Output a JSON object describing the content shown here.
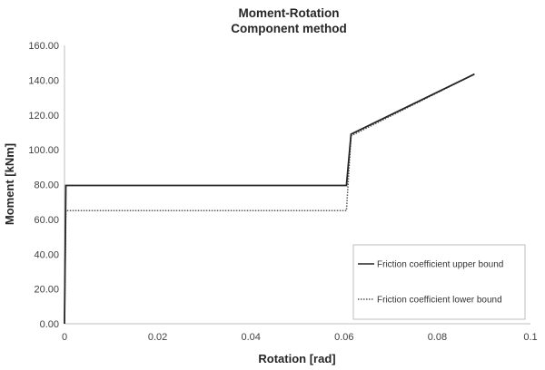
{
  "chart_data": {
    "type": "line",
    "title": "Moment-Rotation",
    "subtitle": "Component method",
    "xlabel": "Rotation [rad]",
    "ylabel": "Moment [kNm]",
    "xlim": [
      0,
      0.1
    ],
    "ylim": [
      0,
      160
    ],
    "x_ticks": [
      "0",
      "0.02",
      "0.04",
      "0.06",
      "0.08",
      "0.1"
    ],
    "x_tick_values": [
      0,
      0.02,
      0.04,
      0.06,
      0.08,
      0.1
    ],
    "y_ticks": [
      "0.00",
      "20.00",
      "40.00",
      "60.00",
      "80.00",
      "100.00",
      "120.00",
      "140.00",
      "160.00"
    ],
    "y_tick_values": [
      0,
      20,
      40,
      60,
      80,
      100,
      120,
      140,
      160
    ],
    "grid": false,
    "legend_position": "bottom-right",
    "series": [
      {
        "name": "Friction coefficient upper bound",
        "style": "solid",
        "color": "#262626",
        "x": [
          0,
          0.0003,
          0.0605,
          0.0615,
          0.088
        ],
        "y": [
          0,
          79.5,
          79.5,
          109,
          143.5
        ]
      },
      {
        "name": "Friction coefficient lower bound",
        "style": "dotted",
        "color": "#595959",
        "x": [
          0,
          0.0003,
          0.0605,
          0.0615,
          0.088
        ],
        "y": [
          0,
          65,
          65,
          108,
          143.5
        ]
      }
    ]
  }
}
